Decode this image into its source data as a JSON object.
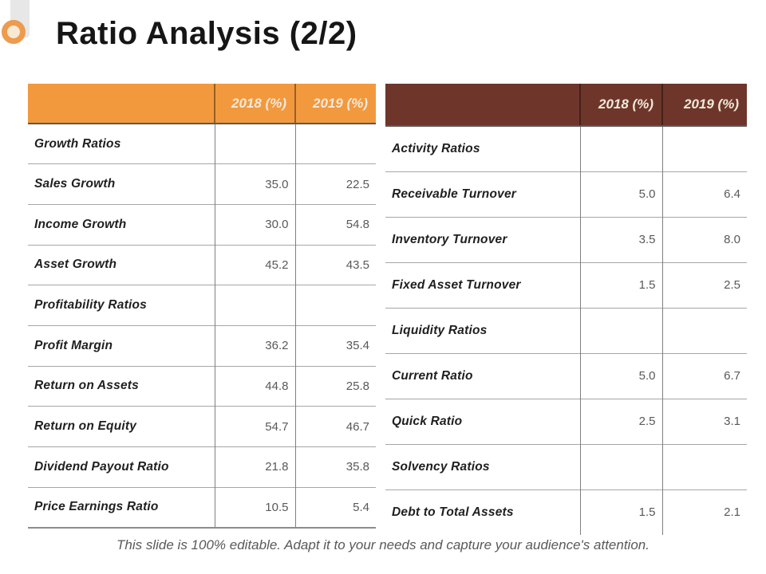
{
  "slide": {
    "title": "Ratio Analysis (2/2)",
    "footer": "This slide is 100% editable. Adapt it to your needs and capture your audience's attention."
  },
  "colors": {
    "left_header_bg": "#f2993e",
    "right_header_bg": "#6e362b",
    "header_text_color": "#f3eadc",
    "accent_ring_color": "#ec9b4f",
    "accent_ring_fill": "#f9e8d3",
    "logo_bar_color": "#e7e7e7"
  },
  "icons": {
    "logo_ring": "orange-donut-ring"
  },
  "tables": [
    {
      "name": "growth-profitability-table",
      "columns": [
        "",
        "2018 (%)",
        "2019 (%)"
      ],
      "rows": [
        {
          "label": "Growth Ratios",
          "v2018": "",
          "v2019": "",
          "section": true
        },
        {
          "label": "Sales Growth",
          "v2018": "35.0",
          "v2019": "22.5"
        },
        {
          "label": "Income Growth",
          "v2018": "30.0",
          "v2019": "54.8"
        },
        {
          "label": "Asset Growth",
          "v2018": "45.2",
          "v2019": "43.5"
        },
        {
          "label": "Profitability Ratios",
          "v2018": "",
          "v2019": "",
          "section": true
        },
        {
          "label": "Profit Margin",
          "v2018": "36.2",
          "v2019": "35.4"
        },
        {
          "label": "Return on Assets",
          "v2018": "44.8",
          "v2019": "25.8"
        },
        {
          "label": "Return on Equity",
          "v2018": "54.7",
          "v2019": "46.7"
        },
        {
          "label": "Dividend Payout Ratio",
          "v2018": "21.8",
          "v2019": "35.8"
        },
        {
          "label": "Price Earnings Ratio",
          "v2018": "10.5",
          "v2019": "5.4"
        }
      ]
    },
    {
      "name": "activity-liquidity-solvency-table",
      "columns": [
        "",
        "2018 (%)",
        "2019 (%)"
      ],
      "rows": [
        {
          "label": "Activity Ratios",
          "v2018": "",
          "v2019": "",
          "section": true
        },
        {
          "label": "Receivable Turnover",
          "v2018": "5.0",
          "v2019": "6.4"
        },
        {
          "label": "Inventory Turnover",
          "v2018": "3.5",
          "v2019": "8.0"
        },
        {
          "label": "Fixed Asset Turnover",
          "v2018": "1.5",
          "v2019": "2.5"
        },
        {
          "label": "Liquidity Ratios",
          "v2018": "",
          "v2019": "",
          "section": true
        },
        {
          "label": "Current Ratio",
          "v2018": "5.0",
          "v2019": "6.7"
        },
        {
          "label": "Quick Ratio",
          "v2018": "2.5",
          "v2019": "3.1"
        },
        {
          "label": "Solvency Ratios",
          "v2018": "",
          "v2019": "",
          "section": true
        },
        {
          "label": "Debt to Total Assets",
          "v2018": "1.5",
          "v2019": "2.1"
        }
      ]
    }
  ]
}
